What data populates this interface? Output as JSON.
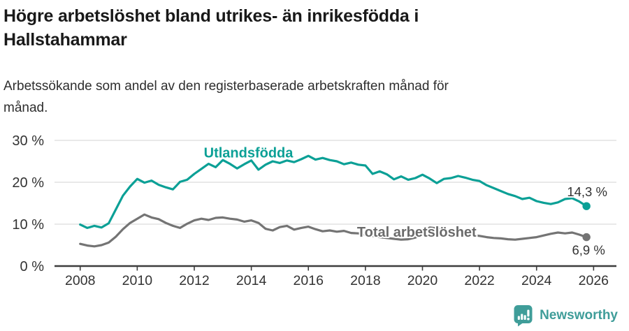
{
  "header": {
    "title_lines": [
      "Högre arbetslöshet bland utrikes- än inrikesfödda i",
      "Hallstahammar"
    ],
    "subtitle_lines": [
      "Arbetssökande som andel av den registerbaserade arbetskraften månad för",
      "månad."
    ]
  },
  "footer": {
    "brand": "Newsworthy"
  },
  "colors": {
    "teal_series": "#0ba096",
    "gray_series": "#747474",
    "gray_label": "#6b6b6b",
    "axis_line": "#3d3d3d",
    "axis_text": "#333333",
    "grid": "#dcdcdc",
    "value_label": "#333333",
    "title": "#191919",
    "brand_teal": "#3f9d99"
  },
  "chart_data": {
    "type": "line",
    "title": "Högre arbetslöshet bland utrikes- än inrikesfödda i Hallstahammar",
    "subtitle": "Arbetssökande som andel av den registerbaserade arbetskraften månad för månad.",
    "xlabel": "",
    "ylabel": "",
    "xlim": [
      2007.1,
      2026.8
    ],
    "ylim": [
      0,
      30
    ],
    "grid": true,
    "legend_position": "inline-labels",
    "x_ticks": [
      2008,
      2010,
      2012,
      2014,
      2016,
      2018,
      2020,
      2022,
      2024,
      2026
    ],
    "y_ticks": [
      0,
      10,
      20,
      30
    ],
    "y_tick_labels": [
      "0 %",
      "10 %",
      "20 %",
      "30 %"
    ],
    "series": [
      {
        "name": "Utlandsfödda",
        "color": "#0ba096",
        "label_color": "#0ba096",
        "x_start": 2008.0,
        "x_step": 0.25,
        "values": [
          9.9,
          9.1,
          9.6,
          9.2,
          10.2,
          13.5,
          16.8,
          19.0,
          20.8,
          19.9,
          20.4,
          19.4,
          18.8,
          18.3,
          20.1,
          20.6,
          22.0,
          23.2,
          24.4,
          23.6,
          25.3,
          24.4,
          23.3,
          24.3,
          25.2,
          23.0,
          24.2,
          25.0,
          24.6,
          25.2,
          24.8,
          25.5,
          26.3,
          25.4,
          25.8,
          25.3,
          25.0,
          24.3,
          24.7,
          24.2,
          24.0,
          22.0,
          22.6,
          21.9,
          20.7,
          21.4,
          20.6,
          21.0,
          21.8,
          20.9,
          19.8,
          20.8,
          21.0,
          21.5,
          21.1,
          20.6,
          20.3,
          19.3,
          18.6,
          17.9,
          17.2,
          16.7,
          16.0,
          16.3,
          15.5,
          15.1,
          14.8,
          15.2,
          16.0,
          16.2,
          15.4,
          14.3
        ],
        "end_value": 14.3,
        "end_label": "14,3 %",
        "end_label_offset": [
          1,
          -14
        ],
        "label": {
          "text": "Utlandsfödda",
          "x": 2013.9,
          "y": 27.1
        }
      },
      {
        "name": "Total arbetslöshet",
        "color": "#747474",
        "label_color": "#6b6b6b",
        "x_start": 2008.0,
        "x_step": 0.25,
        "values": [
          5.3,
          4.9,
          4.7,
          5.0,
          5.6,
          7.0,
          8.8,
          10.3,
          11.3,
          12.3,
          11.6,
          11.2,
          10.3,
          9.6,
          9.1,
          10.1,
          10.9,
          11.3,
          11.0,
          11.5,
          11.6,
          11.3,
          11.1,
          10.6,
          10.9,
          10.3,
          8.9,
          8.5,
          9.3,
          9.6,
          8.7,
          9.1,
          9.4,
          8.8,
          8.3,
          8.5,
          8.2,
          8.4,
          7.9,
          7.8,
          7.5,
          7.2,
          6.9,
          6.7,
          6.5,
          6.3,
          6.4,
          6.8,
          7.8,
          9.2,
          9.0,
          8.6,
          8.3,
          7.9,
          7.5,
          7.4,
          7.2,
          6.9,
          6.7,
          6.6,
          6.4,
          6.3,
          6.5,
          6.7,
          6.9,
          7.3,
          7.7,
          8.0,
          7.8,
          8.0,
          7.5,
          6.9
        ],
        "end_value": 6.9,
        "end_label": "6,9 %",
        "end_label_offset": [
          3,
          25
        ],
        "label": {
          "text": "Total arbetslöshet",
          "x": 2019.8,
          "y": 8.2
        }
      }
    ]
  }
}
